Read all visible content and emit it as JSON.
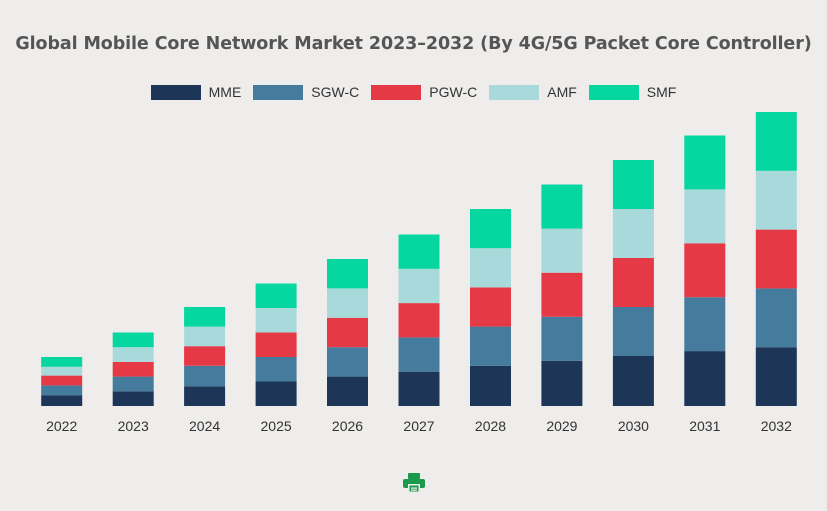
{
  "chart_data": {
    "type": "bar",
    "stacked": true,
    "title": "Global Mobile Core Network Market 2023–2032 (By 4G/5G Packet Core Controller)",
    "xlabel": "",
    "ylabel": "",
    "legend_position": "top-center",
    "grid": false,
    "ylim": [
      0,
      300
    ],
    "categories": [
      "2022",
      "2023",
      "2024",
      "2025",
      "2026",
      "2027",
      "2028",
      "2029",
      "2030",
      "2031",
      "2032"
    ],
    "series": [
      {
        "name": "MME",
        "color": "#1d3557",
        "values": [
          11,
          15,
          20,
          25,
          30,
          35,
          41,
          46,
          51,
          56,
          60
        ]
      },
      {
        "name": "SGW-C",
        "color": "#457b9d",
        "values": [
          10,
          15,
          21,
          25,
          30,
          35,
          40,
          45,
          50,
          55,
          60
        ]
      },
      {
        "name": "PGW-C",
        "color": "#e63946",
        "values": [
          10,
          15,
          20,
          25,
          30,
          35,
          40,
          45,
          50,
          55,
          60
        ]
      },
      {
        "name": "AMF",
        "color": "#a8dadc",
        "values": [
          9,
          15,
          20,
          25,
          30,
          35,
          40,
          45,
          50,
          55,
          60
        ]
      },
      {
        "name": "SMF",
        "color": "#06d6a0",
        "values": [
          10,
          15,
          20,
          25,
          30,
          35,
          40,
          45,
          50,
          55,
          60
        ]
      }
    ]
  },
  "icons": {
    "print": "print-icon"
  },
  "colors": {
    "print_icon": "#1a9a4a",
    "background": "#eeedeb"
  }
}
